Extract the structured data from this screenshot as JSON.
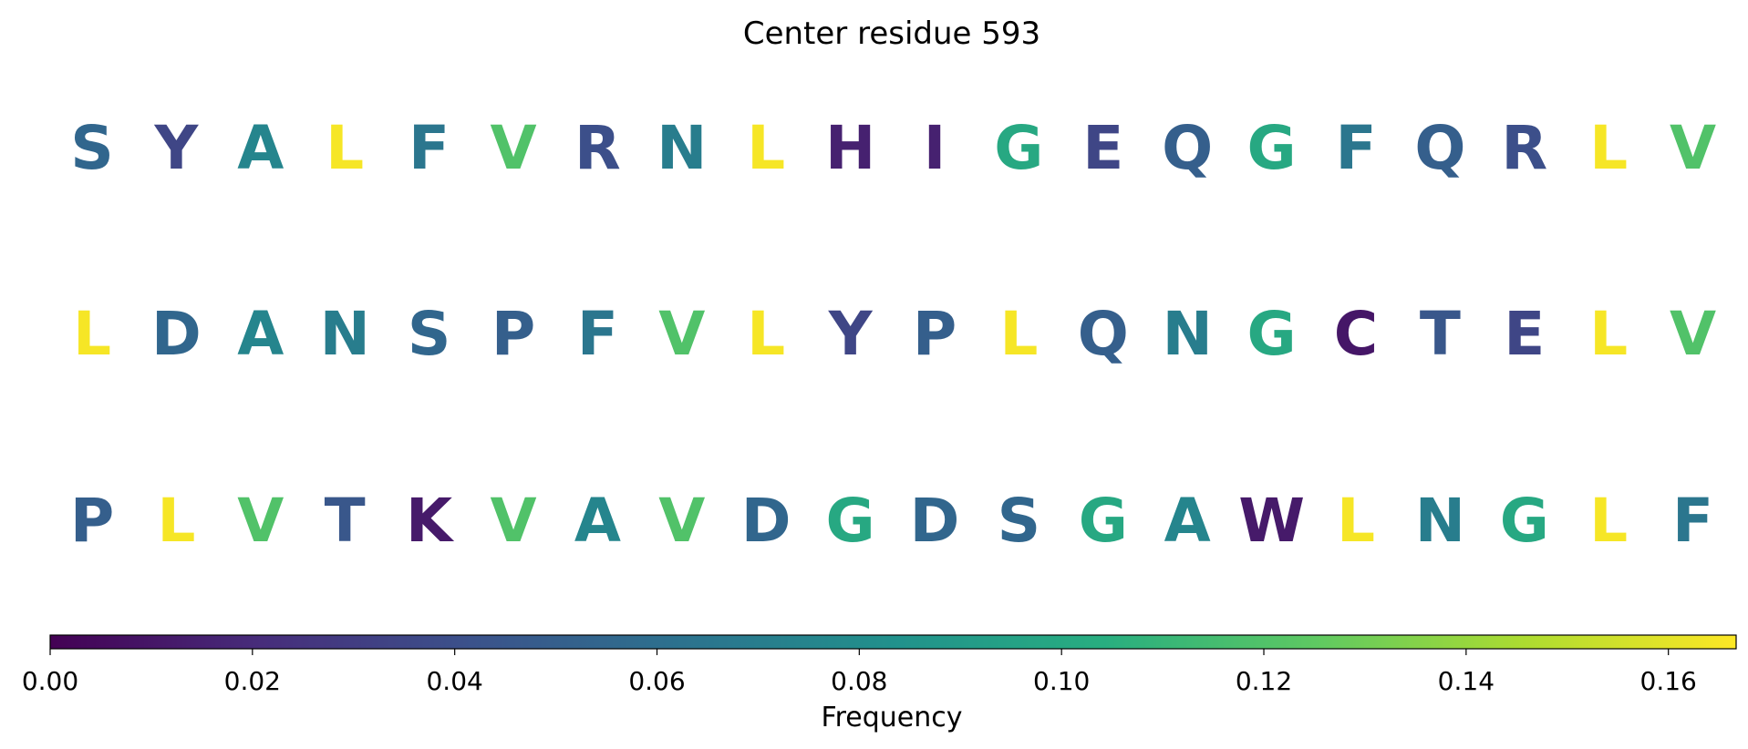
{
  "chart_data": {
    "type": "heatmap",
    "title": "Center residue 593",
    "rows": [
      [
        {
          "letter": "S",
          "value": 0.055
        },
        {
          "letter": "Y",
          "value": 0.035
        },
        {
          "letter": "A",
          "value": 0.075
        },
        {
          "letter": "L",
          "value": 0.165
        },
        {
          "letter": "F",
          "value": 0.065
        },
        {
          "letter": "V",
          "value": 0.12
        },
        {
          "letter": "R",
          "value": 0.04
        },
        {
          "letter": "N",
          "value": 0.07
        },
        {
          "letter": "L",
          "value": 0.165
        },
        {
          "letter": "H",
          "value": 0.015
        },
        {
          "letter": "I",
          "value": 0.015
        },
        {
          "letter": "G",
          "value": 0.1
        },
        {
          "letter": "E",
          "value": 0.035
        },
        {
          "letter": "Q",
          "value": 0.05
        },
        {
          "letter": "G",
          "value": 0.1
        },
        {
          "letter": "F",
          "value": 0.065
        },
        {
          "letter": "Q",
          "value": 0.05
        },
        {
          "letter": "R",
          "value": 0.04
        },
        {
          "letter": "L",
          "value": 0.165
        },
        {
          "letter": "V",
          "value": 0.12
        }
      ],
      [
        {
          "letter": "L",
          "value": 0.165
        },
        {
          "letter": "D",
          "value": 0.055
        },
        {
          "letter": "A",
          "value": 0.075
        },
        {
          "letter": "N",
          "value": 0.07
        },
        {
          "letter": "S",
          "value": 0.055
        },
        {
          "letter": "P",
          "value": 0.05
        },
        {
          "letter": "F",
          "value": 0.065
        },
        {
          "letter": "V",
          "value": 0.12
        },
        {
          "letter": "L",
          "value": 0.165
        },
        {
          "letter": "Y",
          "value": 0.035
        },
        {
          "letter": "P",
          "value": 0.05
        },
        {
          "letter": "L",
          "value": 0.165
        },
        {
          "letter": "Q",
          "value": 0.05
        },
        {
          "letter": "N",
          "value": 0.07
        },
        {
          "letter": "G",
          "value": 0.1
        },
        {
          "letter": "C",
          "value": 0.01
        },
        {
          "letter": "T",
          "value": 0.045
        },
        {
          "letter": "E",
          "value": 0.035
        },
        {
          "letter": "L",
          "value": 0.165
        },
        {
          "letter": "V",
          "value": 0.12
        }
      ],
      [
        {
          "letter": "P",
          "value": 0.05
        },
        {
          "letter": "L",
          "value": 0.165
        },
        {
          "letter": "V",
          "value": 0.12
        },
        {
          "letter": "T",
          "value": 0.045
        },
        {
          "letter": "K",
          "value": 0.012
        },
        {
          "letter": "V",
          "value": 0.12
        },
        {
          "letter": "A",
          "value": 0.075
        },
        {
          "letter": "V",
          "value": 0.12
        },
        {
          "letter": "D",
          "value": 0.055
        },
        {
          "letter": "G",
          "value": 0.1
        },
        {
          "letter": "D",
          "value": 0.055
        },
        {
          "letter": "S",
          "value": 0.055
        },
        {
          "letter": "G",
          "value": 0.1
        },
        {
          "letter": "A",
          "value": 0.075
        },
        {
          "letter": "W",
          "value": 0.012
        },
        {
          "letter": "L",
          "value": 0.165
        },
        {
          "letter": "N",
          "value": 0.07
        },
        {
          "letter": "G",
          "value": 0.1
        },
        {
          "letter": "L",
          "value": 0.165
        },
        {
          "letter": "F",
          "value": 0.065
        }
      ]
    ],
    "colorbar": {
      "label": "Frequency",
      "min": 0,
      "max": 0.1667,
      "ticks": [
        "0.00",
        "0.02",
        "0.04",
        "0.06",
        "0.08",
        "0.10",
        "0.12",
        "0.14",
        "0.16"
      ],
      "colormap": "viridis"
    }
  }
}
